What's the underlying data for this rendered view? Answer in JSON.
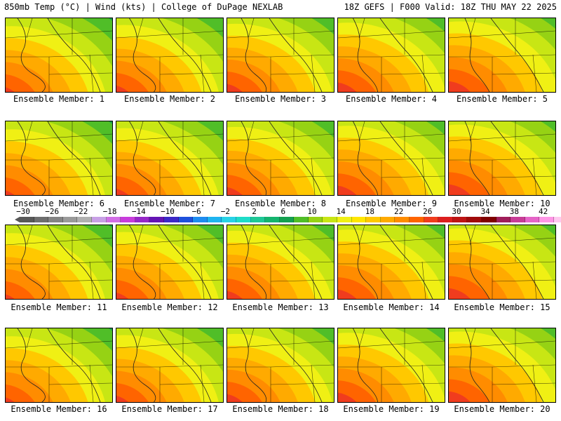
{
  "header": {
    "left": "850mb Temp (°C) | Wind (kts) | College of DuPage NEXLAB",
    "right": "18Z GEFS | F000 Valid: 18Z THU MAY 22 2025"
  },
  "members": [
    "Ensemble Member: 1",
    "Ensemble Member: 2",
    "Ensemble Member: 3",
    "Ensemble Member: 4",
    "Ensemble Member: 5",
    "Ensemble Member: 6",
    "Ensemble Member: 7",
    "Ensemble Member: 8",
    "Ensemble Member: 9",
    "Ensemble Member: 10",
    "Ensemble Member: 11",
    "Ensemble Member: 12",
    "Ensemble Member: 13",
    "Ensemble Member: 14",
    "Ensemble Member: 15",
    "Ensemble Member: 16",
    "Ensemble Member: 17",
    "Ensemble Member: 18",
    "Ensemble Member: 19",
    "Ensemble Member: 20"
  ],
  "colorbar": {
    "ticks": [
      "−30",
      "−26",
      "−22",
      "−18",
      "−14",
      "−10",
      "−6",
      "−2",
      "2",
      "6",
      "10",
      "14",
      "18",
      "22",
      "26",
      "30",
      "34",
      "38",
      "42"
    ],
    "colors": [
      "#585858",
      "#6e6e6e",
      "#848484",
      "#9a9a9a",
      "#b0b0b0",
      "#c8a0e6",
      "#d26ee6",
      "#c83cdc",
      "#9628c8",
      "#6414b4",
      "#3c28c8",
      "#1e50dc",
      "#1e8cf0",
      "#1eb4f0",
      "#28d2e6",
      "#1edcc8",
      "#1ec896",
      "#14b46e",
      "#14a050",
      "#50be28",
      "#96d214",
      "#c8e614",
      "#f0f014",
      "#ffe600",
      "#ffc800",
      "#ffaa00",
      "#ff8c00",
      "#ff6400",
      "#f03c1e",
      "#dc1e1e",
      "#be1414",
      "#a00a0a",
      "#800000",
      "#a01e5a",
      "#c83c96",
      "#e664c8",
      "#ff96e6",
      "#ffc8f0"
    ],
    "low_color": "#585858",
    "high_color": "#ffc8f0"
  },
  "map_colors": [
    "#dc1e1e",
    "#f03c1e",
    "#ff6400",
    "#ff8c00",
    "#ffaa00",
    "#ffc800",
    "#f0f014",
    "#c8e614",
    "#96d214",
    "#50be28",
    "#14a050",
    "#1ec896",
    "#1edcc8"
  ]
}
